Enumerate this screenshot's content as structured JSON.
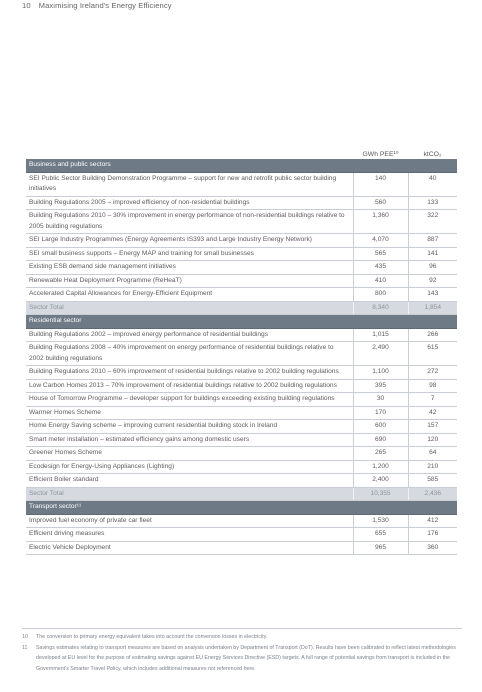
{
  "header": {
    "page_number": "10",
    "title": "Maximising Ireland's Energy Efficiency"
  },
  "table": {
    "columns": [
      "GWh PEE¹⁰",
      "ktCO₂"
    ],
    "sections": [
      {
        "title": "Business and public sectors",
        "rows": [
          {
            "desc": "SEI Public Sector Building Demonstration Programme – support for new and retrofit public sector building initiatives",
            "gwh": "140",
            "kt": "40"
          },
          {
            "desc": "Building Regulations 2005 – improved efficiency of non-residential buildings",
            "gwh": "560",
            "kt": "133"
          },
          {
            "desc": "Building Regulations 2010 – 30% improvement in energy performance of non-residential buildings relative to 2005 building regulations",
            "gwh": "1,360",
            "kt": "322"
          },
          {
            "desc": "SEI Large Industry Programmes (Energy Agreements IS393 and Large Industry Energy Network)",
            "gwh": "4,070",
            "kt": "887"
          },
          {
            "desc": "SEI small business supports – Energy MAP and training for small businesses",
            "gwh": "565",
            "kt": "141"
          },
          {
            "desc": "Existing ESB demand side management initiatives",
            "gwh": "435",
            "kt": "96"
          },
          {
            "desc": "Renewable Heat Deployment Programme (ReHeaT)",
            "gwh": "410",
            "kt": "92"
          },
          {
            "desc": "Accelerated Capital Allowances for Energy-Efficient Equipment",
            "gwh": "800",
            "kt": "143"
          }
        ],
        "total": {
          "label": "Sector Total",
          "gwh": "8,340",
          "kt": "1,854"
        }
      },
      {
        "title": "Residential sector",
        "rows": [
          {
            "desc": "Building Regulations 2002 – improved energy performance of residential buildings",
            "gwh": "1,015",
            "kt": "266"
          },
          {
            "desc": "Building Regulations 2008 – 40% improvement on energy performance of residential buildings relative to 2002 building regulations",
            "gwh": "2,490",
            "kt": "615"
          },
          {
            "desc": "Building Regulations 2010 – 60% improvement of residential buildings relative to 2002 building regulations",
            "gwh": "1,100",
            "kt": "272"
          },
          {
            "desc": "Low Carbon Homes 2013 – 70% improvement of residential buildings relative to 2002 building regulations",
            "gwh": "395",
            "kt": "98"
          },
          {
            "desc": "House of Tomorrow Programme – developer support for buildings exceeding existing building regulations",
            "gwh": "30",
            "kt": "7"
          },
          {
            "desc": "Warmer Homes Scheme",
            "gwh": "170",
            "kt": "42"
          },
          {
            "desc": "Home Energy Saving scheme – improving current residential building stock in Ireland",
            "gwh": "600",
            "kt": "157"
          },
          {
            "desc": "Smart meter installation – estimated efficiency gains among domestic users",
            "gwh": "690",
            "kt": "120"
          },
          {
            "desc": "Greener Homes Scheme",
            "gwh": "265",
            "kt": "64"
          },
          {
            "desc": "Ecodesign for Energy-Using Appliances (Lighting)",
            "gwh": "1,200",
            "kt": "210"
          },
          {
            "desc": "Efficient Boiler standard",
            "gwh": "2,400",
            "kt": "585"
          }
        ],
        "total": {
          "label": "Sector Total",
          "gwh": "10,355",
          "kt": "2,436"
        }
      },
      {
        "title": "Transport sector¹¹",
        "rows": [
          {
            "desc": "Improved fuel economy of private car fleet",
            "gwh": "1,530",
            "kt": "412"
          },
          {
            "desc": "Efficient driving measures",
            "gwh": "655",
            "kt": "176"
          },
          {
            "desc": "Electric Vehicle Deployment",
            "gwh": "965",
            "kt": "360"
          }
        ]
      }
    ]
  },
  "footnotes": [
    {
      "num": "10",
      "text": "The conversion to primary energy equivalent takes into account the conversion losses in electricity."
    },
    {
      "num": "11",
      "text": "Savings estimates relating to transport measures are based on analysis undertaken by Department of Transport (DoT). Results have been calibrated to reflect latest methodologies developed at EU level for the purpose of estimating savings against EU Energy Services Directive (ESD) targets. A full range of potential savings from transport is included in the Government's Smarter Travel Policy, which includes additional measures not referenced here."
    }
  ]
}
